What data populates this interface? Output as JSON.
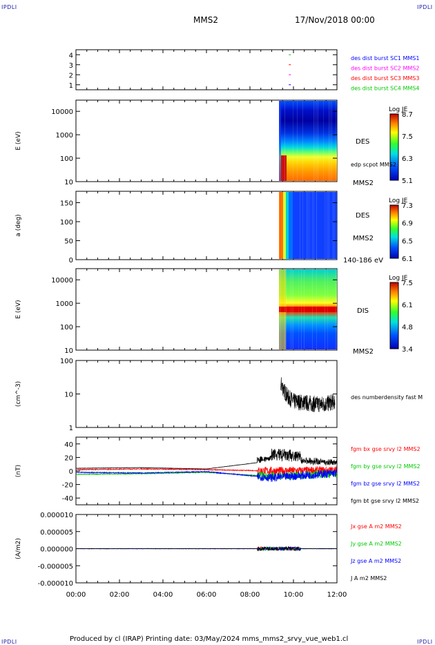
{
  "corner_logo": "IPDLI",
  "header": {
    "spacecraft": "MMS2",
    "date": "17/Nov/2018 00:00"
  },
  "footer": {
    "credit": "Produced by cl (IRAP)   Printing date: 03/May/2024   mms_mms2_srvy_vue_web1.cl"
  },
  "colors": {
    "blue": "#0000ff",
    "magenta": "#ff00ff",
    "red": "#ff0000",
    "green": "#00c800",
    "black": "#000000"
  },
  "chart_data": [
    {
      "type": "scatter",
      "panel": "burst-availability",
      "ylim": [
        0.5,
        4.5
      ],
      "yticks": [
        "1",
        "2",
        "3",
        "4"
      ],
      "legend": [
        {
          "name": "des dist burst SC1 MMS1",
          "color": "#0000ff"
        },
        {
          "name": "des dist burst SC2 MMS2",
          "color": "#ff00ff"
        },
        {
          "name": "des dist burst SC3 MMS3",
          "color": "#ff0000"
        },
        {
          "name": "des dist burst SC4 MMS4",
          "color": "#00c800"
        }
      ],
      "series": [
        {
          "y": 4,
          "x": [
            "09:50"
          ],
          "color": "#00c800"
        },
        {
          "y": 3,
          "x": [
            "09:50"
          ],
          "color": "#ff0000"
        },
        {
          "y": 2,
          "x": [
            "09:50"
          ],
          "color": "#ff00ff"
        },
        {
          "y": 1,
          "x": [
            "09:50"
          ],
          "color": "#0000ff"
        }
      ]
    },
    {
      "type": "heatmap",
      "panel": "des-energy",
      "ylabel": "E (eV)",
      "ylim": [
        10,
        30000
      ],
      "yscale": "log",
      "yticks": [
        "10",
        "100",
        "1000",
        "10000"
      ],
      "data_start": "09:20",
      "labels": [
        "DES",
        "edp scpot MMS2",
        "MMS2"
      ],
      "colorbar": {
        "title": "Log JE",
        "ticks": [
          "8.7",
          "7.5",
          "6.3",
          "5.1"
        ]
      }
    },
    {
      "type": "heatmap",
      "panel": "des-pitch",
      "ylabel": "a (deg)",
      "ylim": [
        0,
        180
      ],
      "yticks": [
        "0",
        "50",
        "100",
        "150"
      ],
      "data_start": "09:20",
      "labels": [
        "DES",
        "MMS2",
        "140-186 eV"
      ],
      "colorbar": {
        "title": "Log JE",
        "ticks": [
          "7.3",
          "6.9",
          "6.5",
          "6.1"
        ]
      }
    },
    {
      "type": "heatmap",
      "panel": "dis-energy",
      "ylabel": "E (eV)",
      "ylim": [
        10,
        30000
      ],
      "yscale": "log",
      "yticks": [
        "10",
        "100",
        "1000",
        "10000"
      ],
      "data_start": "09:20",
      "labels": [
        "DIS",
        "MMS2"
      ],
      "colorbar": {
        "title": "Log JE",
        "ticks": [
          "7.5",
          "6.1",
          "4.8",
          "3.4"
        ]
      }
    },
    {
      "type": "line",
      "panel": "density",
      "ylabel": "(cm^-3)",
      "ylim": [
        1,
        100
      ],
      "yscale": "log",
      "yticks": [
        "1",
        "10",
        "100"
      ],
      "series": [
        {
          "name": "des numberdensity fast M",
          "color": "#000000",
          "x": [
            "09:25",
            "09:35",
            "09:45",
            "10:00",
            "10:30",
            "11:00",
            "11:30",
            "11:55"
          ],
          "values": [
            20,
            12,
            8,
            6,
            5.5,
            5,
            5,
            6
          ]
        }
      ]
    },
    {
      "type": "line",
      "panel": "b-field",
      "ylabel": "(nT)",
      "ylim": [
        -50,
        50
      ],
      "yticks": [
        "-40",
        "-20",
        "0",
        "20",
        "40"
      ],
      "series": [
        {
          "name": "fgm bx gse srvy l2 MMS2",
          "color": "#ff0000",
          "x": [
            "00:00",
            "03:00",
            "06:00",
            "09:00",
            "12:00"
          ],
          "values": [
            2,
            3,
            2,
            0,
            1
          ]
        },
        {
          "name": "fgm by gse srvy l2 MMS2",
          "color": "#00c800",
          "x": [
            "00:00",
            "03:00",
            "06:00",
            "09:00",
            "12:00"
          ],
          "values": [
            -5,
            -4,
            -2,
            -8,
            -4
          ]
        },
        {
          "name": "fgm bz gse srvy l2 MMS2",
          "color": "#0000ff",
          "x": [
            "00:00",
            "03:00",
            "06:00",
            "09:00",
            "12:00"
          ],
          "values": [
            -2,
            -3,
            -1,
            -10,
            -3
          ]
        },
        {
          "name": "fgm bt gse srvy l2 MMS2",
          "color": "#000000",
          "x": [
            "00:00",
            "03:00",
            "06:00",
            "09:00",
            "12:00"
          ],
          "values": [
            4,
            5,
            3,
            15,
            8
          ]
        }
      ]
    },
    {
      "type": "line",
      "panel": "current",
      "ylabel": "(A/m2)",
      "ylim": [
        -1e-05,
        1e-05
      ],
      "yticks": [
        "-0.000010",
        "-0.000005",
        "0.000000",
        "0.000005",
        "0.000010"
      ],
      "xticks": [
        "00:00",
        "02:00",
        "04:00",
        "06:00",
        "08:00",
        "10:00",
        "12:00"
      ],
      "series": [
        {
          "name": "Jx gse A m2 MMS2",
          "color": "#ff0000",
          "x": [
            "00:00",
            "06:00",
            "12:00"
          ],
          "values": [
            0,
            0,
            0
          ]
        },
        {
          "name": "Jy gse A m2 MMS2",
          "color": "#00c800",
          "x": [
            "00:00",
            "06:00",
            "12:00"
          ],
          "values": [
            0,
            0,
            0
          ]
        },
        {
          "name": "Jz gse A m2 MMS2",
          "color": "#0000ff",
          "x": [
            "00:00",
            "06:00",
            "12:00"
          ],
          "values": [
            0,
            0,
            0
          ]
        },
        {
          "name": "J A m2 MMS2",
          "color": "#000000",
          "x": [
            "00:00",
            "06:00",
            "12:00"
          ],
          "values": [
            0,
            0,
            0
          ]
        }
      ]
    }
  ]
}
